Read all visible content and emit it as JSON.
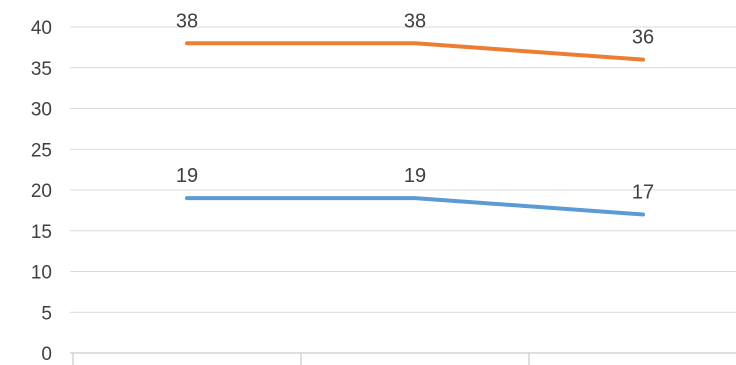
{
  "chart_data": {
    "type": "line",
    "categories": [
      "",
      "",
      ""
    ],
    "series": [
      {
        "values": [
          38,
          38,
          36
        ],
        "color": "#ed7d31"
      },
      {
        "values": [
          19,
          19,
          17
        ],
        "color": "#5b9bd5"
      }
    ],
    "ylim": [
      0,
      40
    ],
    "yticks": [
      0,
      5,
      10,
      15,
      20,
      25,
      30,
      35,
      40
    ],
    "grid": true,
    "data_labels": true,
    "legend": "none"
  }
}
